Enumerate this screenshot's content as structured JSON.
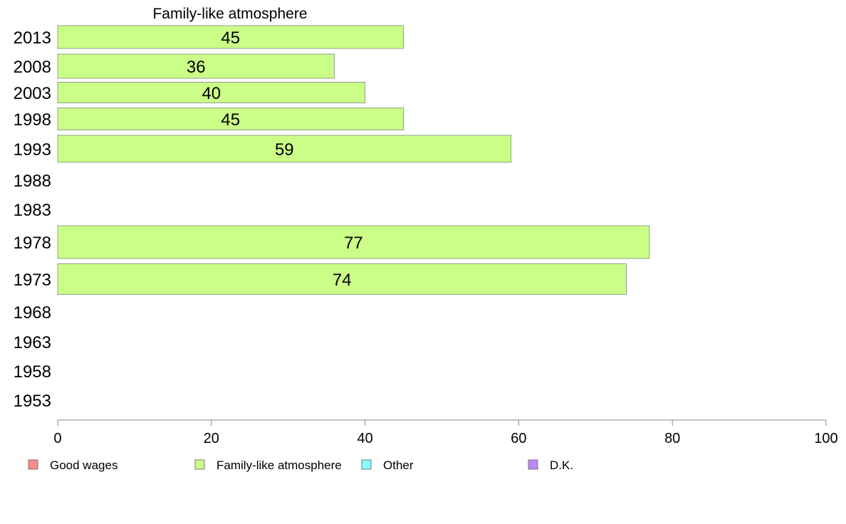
{
  "chart_data": {
    "type": "bar",
    "orientation": "horizontal",
    "title": "Family-like atmosphere",
    "categories": [
      "2013",
      "2008",
      "2003",
      "1998",
      "1993",
      "1988",
      "1983",
      "1978",
      "1973",
      "1968",
      "1963",
      "1958",
      "1953"
    ],
    "series": [
      {
        "name": "Family-like atmosphere",
        "values": [
          45,
          36,
          40,
          45,
          59,
          null,
          null,
          77,
          74,
          null,
          null,
          null,
          null
        ],
        "labels": [
          "45",
          "36",
          "40",
          "45",
          "59",
          "",
          "",
          "77",
          "74",
          "",
          "",
          "",
          ""
        ],
        "color": "#ccff88"
      }
    ],
    "xlim": [
      0,
      100
    ],
    "xticks": [
      "0",
      "20",
      "40",
      "60",
      "80",
      "100"
    ],
    "grid": false,
    "legend": {
      "placement": "bottom",
      "items": [
        {
          "label": "Good wages",
          "color": "#ff8888"
        },
        {
          "label": "Family-like atmosphere",
          "color": "#ccff88"
        },
        {
          "label": "Other",
          "color": "#88ffff"
        },
        {
          "label": "D.K.",
          "color": "#bb88ff"
        }
      ]
    }
  }
}
